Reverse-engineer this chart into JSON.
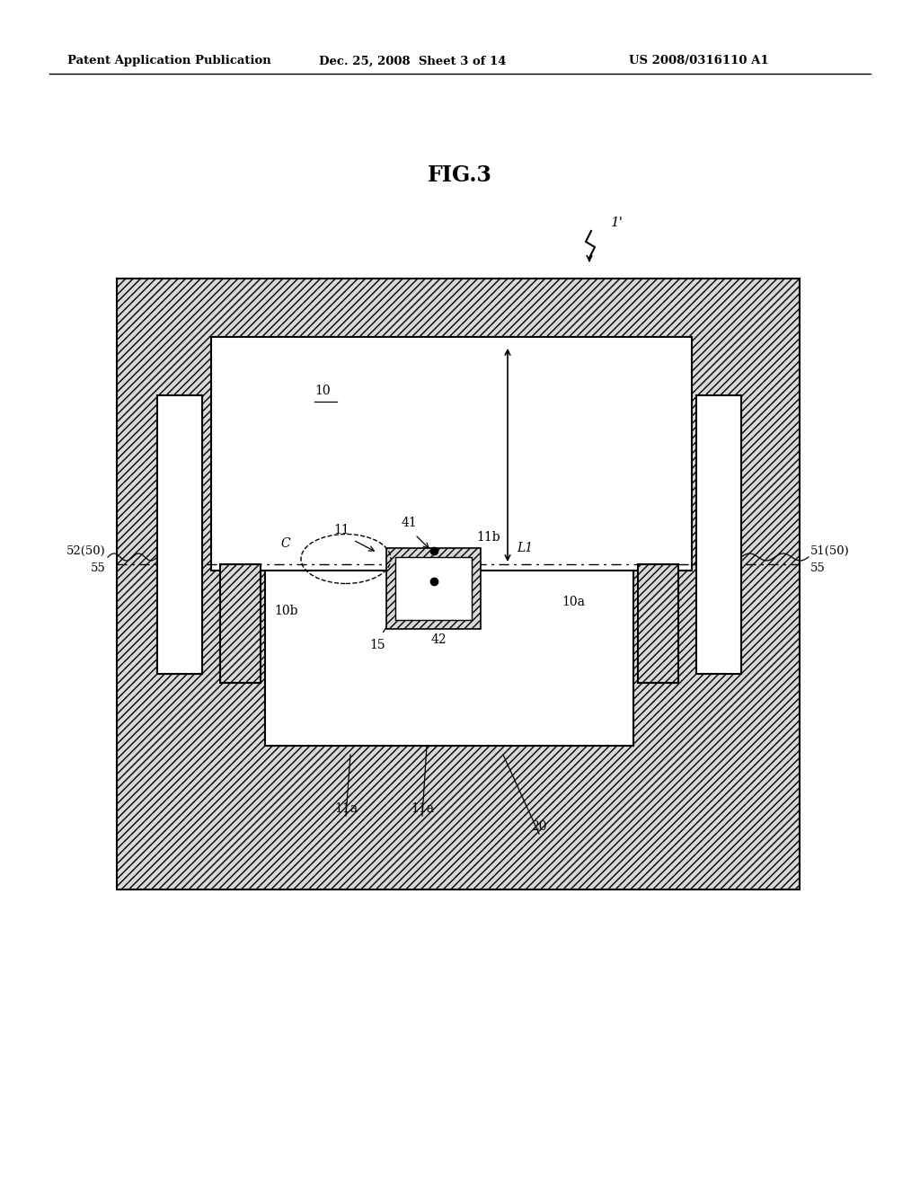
{
  "title": "FIG.3",
  "header_left": "Patent Application Publication",
  "header_mid": "Dec. 25, 2008  Sheet 3 of 14",
  "header_right": "US 2008/0316110 A1",
  "bg_color": "#ffffff",
  "fig_label": "1'"
}
